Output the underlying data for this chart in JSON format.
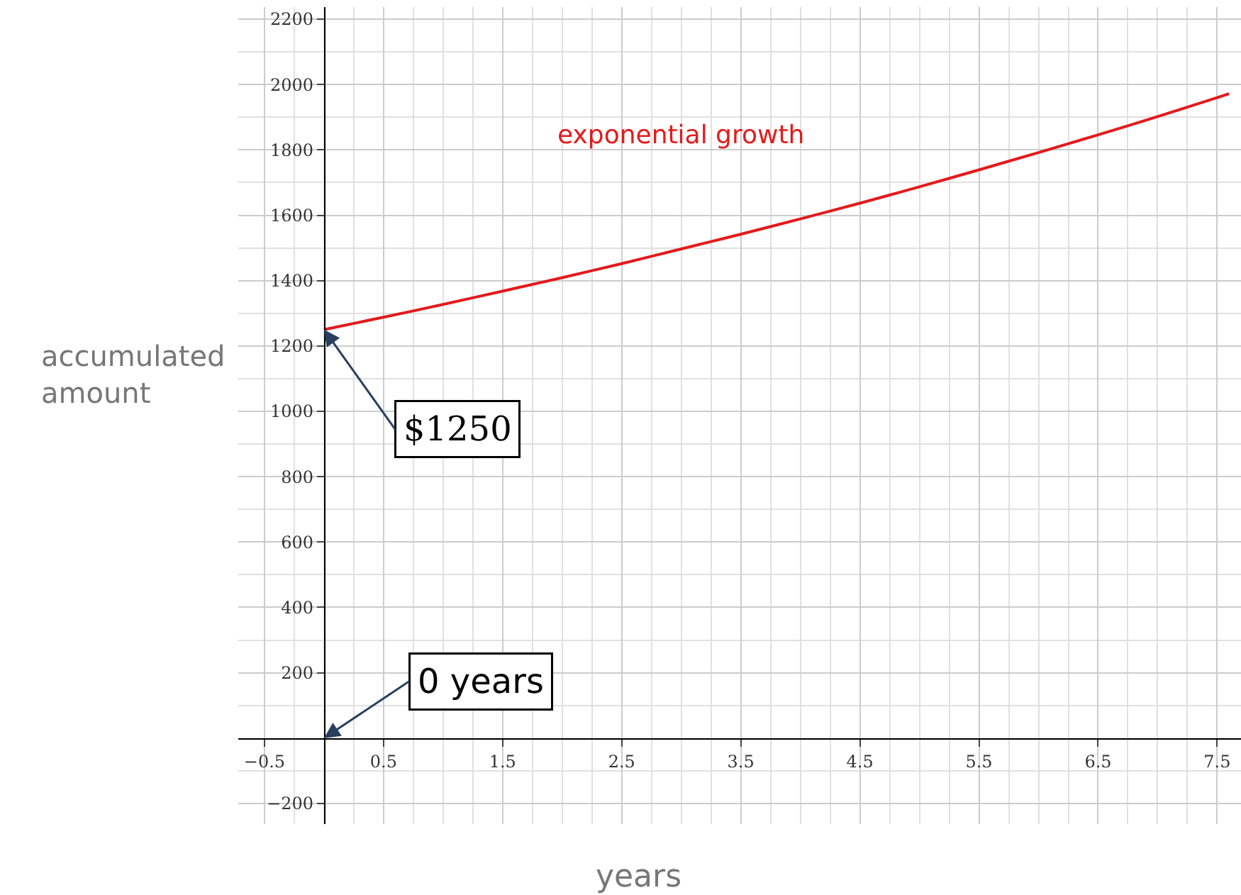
{
  "chart_data": {
    "type": "line",
    "xlabel": "years",
    "ylabel": "accumulated amount",
    "x": [
      0,
      0.5,
      1,
      1.5,
      2,
      2.5,
      3,
      3.5,
      4,
      4.5,
      5,
      5.5,
      6,
      6.5,
      7,
      7.5,
      7.6
    ],
    "series": [
      {
        "name": "exponential growth",
        "color": "#e41a1c",
        "values": [
          1250,
          1288,
          1327,
          1368,
          1409,
          1452,
          1497,
          1542,
          1589,
          1637,
          1687,
          1739,
          1792,
          1846,
          1902,
          1960,
          1972
        ]
      }
    ],
    "annotations": [
      {
        "text": "$1250",
        "x": 0,
        "y": 1250
      },
      "0 years"
    ],
    "xlim": [
      -0.72,
      7.7
    ],
    "ylim": [
      -263,
      2237
    ],
    "xticks": [
      {
        "value": -0.5,
        "label": "−0.5"
      },
      0.5,
      1.5,
      2.5,
      3.5,
      4.5,
      5.5,
      6.5,
      7.5
    ],
    "yticks": [
      {
        "value": -200,
        "label": "−200"
      },
      200,
      400,
      600,
      800,
      1000,
      1200,
      1400,
      1600,
      1800,
      2000,
      2200
    ],
    "grid": true,
    "legend": false,
    "marker": "none",
    "line_style": "solid"
  }
}
